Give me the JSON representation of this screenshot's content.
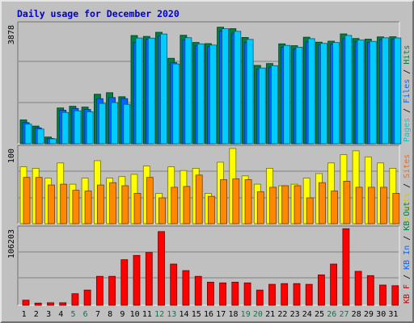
{
  "title": "Daily usage for December 2020",
  "chart_data": [
    {
      "type": "bar",
      "panel": "top",
      "ymax_label": "3878",
      "legend": [
        {
          "text": "Pages",
          "color": "#00cccc"
        },
        {
          "text": " / ",
          "color": "#000000"
        },
        {
          "text": "Files",
          "color": "#0066ff"
        },
        {
          "text": " / ",
          "color": "#000000"
        },
        {
          "text": "Hits",
          "color": "#008040"
        }
      ],
      "series": [
        {
          "name": "Hits",
          "color": "#008040",
          "values": [
            773,
            575,
            217,
            1160,
            1217,
            1189,
            1605,
            1656,
            1524,
            3510,
            3483,
            3616,
            2772,
            3519,
            3287,
            3250,
            3780,
            3733,
            3447,
            2542,
            2602,
            3241,
            3182,
            3455,
            3296,
            3329,
            3564,
            3414,
            3392,
            3467,
            3473
          ]
        },
        {
          "name": "Files",
          "color": "#0066ff",
          "values": [
            686,
            515,
            173,
            1087,
            1144,
            1112,
            1461,
            1499,
            1464,
            3286,
            3390,
            3503,
            2631,
            3374,
            3186,
            3149,
            3655,
            3590,
            3282,
            2413,
            2483,
            3129,
            3074,
            3305,
            3205,
            3225,
            3412,
            3317,
            3285,
            3384,
            3401
          ]
        },
        {
          "name": "Pages",
          "color": "#00ccff",
          "values": [
            636,
            476,
            160,
            1017,
            1069,
            1037,
            1307,
            1336,
            1278,
            3431,
            3428,
            3562,
            2591,
            3440,
            3241,
            3203,
            3730,
            3648,
            3386,
            2458,
            2534,
            3192,
            3134,
            3408,
            3257,
            3285,
            3514,
            3366,
            3322,
            3437,
            3433
          ]
        }
      ],
      "ylim": [
        0,
        3878
      ]
    },
    {
      "type": "bar",
      "panel": "middle",
      "ymax_label": "100",
      "legend": [
        {
          "text": "Visits",
          "color": "#cccc00"
        },
        {
          "text": " / ",
          "color": "#000000"
        },
        {
          "text": "Sites",
          "color": "#ff6600"
        }
      ],
      "series": [
        {
          "name": "Visits",
          "color": "#ffff00",
          "values": [
            75,
            73,
            60,
            80,
            52,
            60,
            83,
            60,
            62,
            65,
            76,
            40,
            75,
            70,
            73,
            40,
            81,
            99,
            63,
            52,
            73,
            50,
            52,
            60,
            66,
            80,
            91,
            96,
            88,
            80,
            73
          ]
        },
        {
          "name": "Sites",
          "color": "#ff8800",
          "values": [
            61,
            61,
            51,
            52,
            44,
            43,
            51,
            54,
            50,
            40,
            61,
            34,
            48,
            49,
            64,
            36,
            58,
            59,
            58,
            42,
            48,
            50,
            50,
            34,
            54,
            43,
            56,
            48,
            48,
            48,
            40
          ]
        }
      ],
      "ylim": [
        0,
        100
      ]
    },
    {
      "type": "bar",
      "panel": "bottom",
      "ymax_label": "106203",
      "legend": [
        {
          "text": "KB F",
          "color": "#cc0000"
        },
        {
          "text": " / ",
          "color": "#000000"
        },
        {
          "text": "KB In",
          "color": "#0066ff"
        },
        {
          "text": " / ",
          "color": "#000000"
        },
        {
          "text": "KB Out",
          "color": "#008040"
        }
      ],
      "series": [
        {
          "name": "KB F",
          "color": "#ff0000",
          "values": [
            7000,
            3000,
            3500,
            3500,
            16000,
            21000,
            40000,
            40000,
            63000,
            69000,
            73000,
            102000,
            57000,
            48000,
            40000,
            32000,
            31000,
            32000,
            31000,
            21000,
            29000,
            30000,
            30000,
            29000,
            42000,
            57000,
            106000,
            47000,
            41000,
            28000,
            27000
          ]
        }
      ],
      "ylim": [
        0,
        106203
      ]
    }
  ],
  "x_labels": [
    {
      "text": "1",
      "weekend": false
    },
    {
      "text": "2",
      "weekend": false
    },
    {
      "text": "3",
      "weekend": false
    },
    {
      "text": "4",
      "weekend": false
    },
    {
      "text": "5",
      "weekend": true
    },
    {
      "text": "6",
      "weekend": true
    },
    {
      "text": "7",
      "weekend": false
    },
    {
      "text": "8",
      "weekend": false
    },
    {
      "text": "9",
      "weekend": false
    },
    {
      "text": "10",
      "weekend": false
    },
    {
      "text": "11",
      "weekend": false
    },
    {
      "text": "12",
      "weekend": true
    },
    {
      "text": "13",
      "weekend": true
    },
    {
      "text": "14",
      "weekend": false
    },
    {
      "text": "15",
      "weekend": false
    },
    {
      "text": "16",
      "weekend": false
    },
    {
      "text": "17",
      "weekend": false
    },
    {
      "text": "18",
      "weekend": false
    },
    {
      "text": "19",
      "weekend": true
    },
    {
      "text": "20",
      "weekend": true
    },
    {
      "text": "21",
      "weekend": false
    },
    {
      "text": "22",
      "weekend": false
    },
    {
      "text": "23",
      "weekend": false
    },
    {
      "text": "24",
      "weekend": false
    },
    {
      "text": "25",
      "weekend": false
    },
    {
      "text": "26",
      "weekend": true
    },
    {
      "text": "27",
      "weekend": true
    },
    {
      "text": "28",
      "weekend": false
    },
    {
      "text": "29",
      "weekend": false
    },
    {
      "text": "30",
      "weekend": false
    },
    {
      "text": "31",
      "weekend": false
    }
  ],
  "colors": {
    "background": "#c0c0c0",
    "weekday_label": "#000000",
    "weekend_label": "#008040",
    "title": "#0000cc"
  }
}
